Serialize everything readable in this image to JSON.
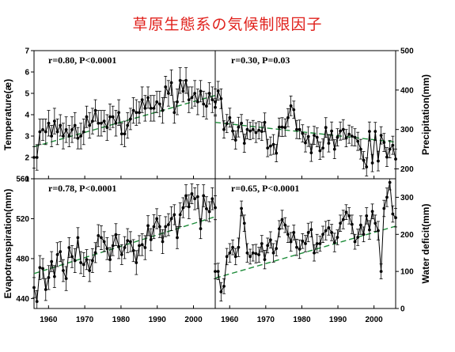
{
  "title": "草原生態系の気候制限因子",
  "chart_data": {
    "type": "line",
    "x_ticks": [
      1960,
      1970,
      1980,
      1990,
      2000
    ],
    "xlim": [
      1956,
      2006
    ],
    "panels": [
      {
        "id": "temperature",
        "ylabel": "Temperature(æ)",
        "ylim": [
          1,
          7
        ],
        "yticks": [
          1,
          2,
          3,
          4,
          5,
          6,
          7
        ],
        "stat_text": "r=0.80, P<0.0001",
        "trend": [
          2.5,
          4.9
        ],
        "values": [
          2.0,
          2.0,
          3.2,
          3.3,
          3.2,
          3.6,
          3.0,
          3.7,
          3.2,
          3.5,
          3.0,
          3.3,
          3.0,
          3.3,
          3.5,
          2.9,
          3.0,
          3.2,
          3.9,
          3.5,
          3.7,
          4.2,
          3.6,
          3.6,
          3.7,
          3.4,
          3.9,
          3.9,
          3.6,
          4.1,
          3.1,
          3.1,
          3.5,
          3.8,
          4.2,
          4.1,
          4.1,
          4.7,
          4.3,
          4.8,
          4.3,
          4.3,
          4.6,
          4.5,
          4.2,
          5.3,
          5.0,
          5.5,
          4.1,
          4.6,
          5.6,
          5.1,
          5.6,
          4.7,
          4.8,
          5.0,
          4.6,
          5.1,
          4.5,
          4.4,
          5.0,
          4.7,
          4.6
        ],
        "errors": [
          0.5,
          0.6,
          0.6,
          0.5,
          0.6,
          0.6,
          0.5,
          0.6,
          0.6,
          0.5,
          0.6,
          0.6,
          0.5,
          0.6,
          0.6,
          0.5,
          0.6,
          0.6,
          0.5,
          0.6,
          0.6,
          0.5,
          0.6,
          0.6,
          0.5,
          0.6,
          0.6,
          0.5,
          0.6,
          0.6,
          0.5,
          0.6,
          0.6,
          0.5,
          0.6,
          0.6,
          0.5,
          0.6,
          0.6,
          0.5,
          0.6,
          0.6,
          0.5,
          0.6,
          0.6,
          0.5,
          0.6,
          0.6,
          0.5,
          0.6,
          0.6,
          0.5,
          0.6,
          0.6,
          0.5,
          0.6,
          0.6,
          0.5,
          0.6,
          0.6,
          0.5,
          0.6,
          0.6
        ]
      },
      {
        "id": "precipitation",
        "ylabel": "Precipitation(mm)",
        "ylim": [
          175,
          500
        ],
        "yticks": [
          200,
          300,
          400,
          500
        ],
        "stat_text": "r=0.30, P=0.03",
        "trend": [
          318,
          268
        ],
        "values": [
          356,
          398,
          378,
          300,
          315,
          330,
          296,
          273,
          306,
          316,
          265,
          300,
          296,
          300,
          292,
          298,
          295,
          318,
          253,
          258,
          262,
          240,
          306,
          306,
          305,
          330,
          360,
          350,
          300,
          300,
          290,
          266,
          282,
          241,
          285,
          280,
          246,
          253,
          305,
          265,
          296,
          250,
          280,
          296,
          300,
          278,
          288,
          283,
          280,
          270,
          250,
          222,
          205,
          295,
          215,
          295,
          220,
          285,
          267,
          230,
          250,
          260,
          225
        ],
        "errors": [
          22,
          24,
          25,
          22,
          23,
          24,
          22,
          23,
          25,
          22,
          23,
          24,
          22,
          23,
          25,
          22,
          23,
          24,
          22,
          23,
          25,
          22,
          23,
          24,
          22,
          23,
          25,
          22,
          23,
          24,
          22,
          23,
          25,
          22,
          23,
          24,
          22,
          23,
          25,
          22,
          23,
          24,
          22,
          23,
          25,
          22,
          23,
          24,
          22,
          23,
          25,
          22,
          23,
          24,
          22,
          23,
          25,
          22,
          23,
          24,
          22,
          23,
          25
        ]
      },
      {
        "id": "evapotranspiration",
        "ylabel": "Evapotranspiration(mm)",
        "ylim": [
          430,
          560
        ],
        "yticks": [
          440,
          480,
          520,
          560
        ],
        "stat_text": "r=0.78, P<0.0001",
        "trend": [
          465,
          522
        ],
        "values": [
          451,
          437,
          471,
          470,
          449,
          461,
          477,
          462,
          484,
          487,
          468,
          460,
          491,
          482,
          478,
          501,
          476,
          474,
          479,
          468,
          478,
          486,
          503,
          501,
          497,
          490,
          479,
          493,
          504,
          492,
          484,
          491,
          498,
          497,
          488,
          476,
          493,
          494,
          491,
          513,
          499,
          512,
          520,
          512,
          497,
          512,
          514,
          520,
          524,
          501,
          524,
          531,
          543,
          532,
          545,
          540,
          542,
          510,
          543,
          530,
          527,
          540,
          531
        ],
        "errors": [
          10,
          11,
          12,
          10,
          11,
          12,
          10,
          11,
          12,
          10,
          11,
          12,
          10,
          11,
          12,
          10,
          11,
          12,
          10,
          11,
          12,
          10,
          11,
          12,
          10,
          11,
          12,
          10,
          11,
          12,
          10,
          11,
          12,
          10,
          11,
          12,
          10,
          11,
          12,
          10,
          11,
          12,
          10,
          11,
          12,
          10,
          11,
          12,
          10,
          11,
          12,
          10,
          11,
          12,
          10,
          11,
          12,
          10,
          11,
          12,
          10,
          11,
          12
        ]
      },
      {
        "id": "water_deficit",
        "ylabel": "Water deficit(mm)",
        "ylim": [
          0,
          350
        ],
        "yticks": [
          0,
          100,
          200,
          300
        ],
        "stat_text": "r=0.65, P<0.0001",
        "trend": [
          82,
          222
        ],
        "values": [
          100,
          100,
          45,
          60,
          140,
          150,
          165,
          140,
          165,
          270,
          230,
          150,
          140,
          150,
          148,
          145,
          175,
          132,
          170,
          185,
          150,
          162,
          215,
          240,
          225,
          200,
          180,
          205,
          165,
          160,
          182,
          175,
          205,
          213,
          150,
          175,
          175,
          200,
          210,
          218,
          205,
          178,
          192,
          230,
          240,
          260,
          250,
          227,
          180,
          192,
          225,
          200,
          250,
          212,
          262,
          230,
          210,
          100,
          270,
          300,
          340,
          255,
          245
        ],
        "errors": [
          20,
          22,
          25,
          20,
          22,
          25,
          20,
          22,
          25,
          20,
          22,
          25,
          20,
          22,
          25,
          20,
          22,
          25,
          20,
          22,
          25,
          20,
          22,
          25,
          20,
          22,
          25,
          20,
          22,
          25,
          20,
          22,
          25,
          20,
          22,
          25,
          20,
          22,
          25,
          20,
          22,
          25,
          20,
          22,
          25,
          20,
          22,
          25,
          20,
          22,
          25,
          20,
          22,
          25,
          20,
          22,
          25,
          20,
          22,
          25,
          20,
          22,
          25
        ]
      }
    ]
  },
  "colors": {
    "series": "#000000",
    "trend": "#1e8c3a",
    "axis": "#000000",
    "title": "#e0201b"
  }
}
